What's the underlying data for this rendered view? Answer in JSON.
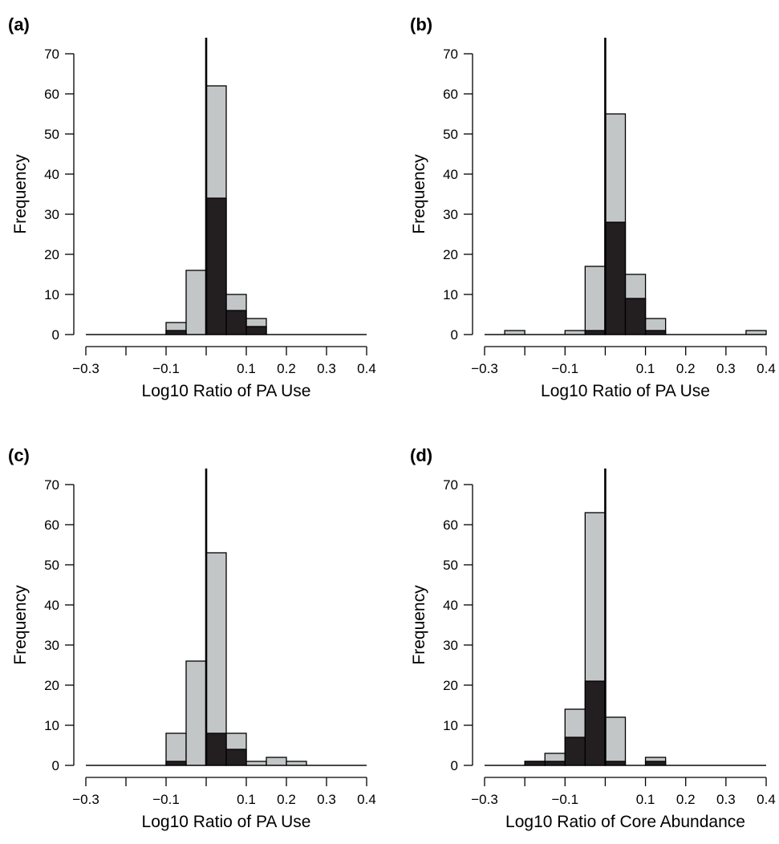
{
  "chart_data": [
    {
      "type": "bar",
      "panel_label": "(a)",
      "xlabel": "Log10 Ratio of PA Use",
      "ylabel": "Frequency",
      "xlim": [
        -0.3,
        0.4
      ],
      "ylim": [
        0,
        70
      ],
      "bin_width": 0.05,
      "bin_start": -0.3,
      "x_ticks": [
        -0.3,
        -0.2,
        -0.1,
        0,
        0.1,
        0.2,
        0.3,
        0.4
      ],
      "x_tick_labels": [
        "−0.3",
        "",
        "−0.1",
        "",
        "0.1",
        "0.2",
        "0.3",
        "0.4"
      ],
      "y_ticks": [
        0,
        10,
        20,
        30,
        40,
        50,
        60,
        70
      ],
      "y_tick_labels": [
        "0",
        "10",
        "20",
        "30",
        "40",
        "50",
        "60",
        "70"
      ],
      "vertical_line_at": 0,
      "series": [
        {
          "values": [
            0,
            0,
            0,
            0,
            3,
            16,
            62,
            10,
            4,
            0,
            0,
            0,
            0,
            0
          ],
          "color": "#c3c6c7"
        },
        {
          "values": [
            0,
            0,
            0,
            0,
            1,
            0,
            34,
            6,
            2,
            0,
            0,
            0,
            0,
            0
          ],
          "color": "#231f20"
        }
      ]
    },
    {
      "type": "bar",
      "panel_label": "(b)",
      "xlabel": "Log10 Ratio of PA Use",
      "ylabel": "Frequency",
      "xlim": [
        -0.3,
        0.4
      ],
      "ylim": [
        0,
        70
      ],
      "bin_width": 0.05,
      "bin_start": -0.3,
      "x_ticks": [
        -0.3,
        -0.2,
        -0.1,
        0,
        0.1,
        0.2,
        0.3,
        0.4
      ],
      "x_tick_labels": [
        "−0.3",
        "",
        "−0.1",
        "",
        "0.1",
        "0.2",
        "0.3",
        "0.4"
      ],
      "y_ticks": [
        0,
        10,
        20,
        30,
        40,
        50,
        60,
        70
      ],
      "y_tick_labels": [
        "0",
        "10",
        "20",
        "30",
        "40",
        "50",
        "60",
        "70"
      ],
      "vertical_line_at": 0,
      "series": [
        {
          "values": [
            0,
            1,
            0,
            0,
            1,
            17,
            55,
            15,
            4,
            0,
            0,
            0,
            0,
            1
          ],
          "color": "#c3c6c7"
        },
        {
          "values": [
            0,
            0,
            0,
            0,
            0,
            1,
            28,
            9,
            1,
            0,
            0,
            0,
            0,
            0
          ],
          "color": "#231f20"
        }
      ]
    },
    {
      "type": "bar",
      "panel_label": "(c)",
      "xlabel": "Log10 Ratio of PA Use",
      "ylabel": "Frequency",
      "xlim": [
        -0.3,
        0.4
      ],
      "ylim": [
        0,
        70
      ],
      "bin_width": 0.05,
      "bin_start": -0.3,
      "x_ticks": [
        -0.3,
        -0.2,
        -0.1,
        0,
        0.1,
        0.2,
        0.3,
        0.4
      ],
      "x_tick_labels": [
        "−0.3",
        "",
        "−0.1",
        "",
        "0.1",
        "0.2",
        "0.3",
        "0.4"
      ],
      "y_ticks": [
        0,
        10,
        20,
        30,
        40,
        50,
        60,
        70
      ],
      "y_tick_labels": [
        "0",
        "10",
        "20",
        "30",
        "40",
        "50",
        "60",
        "70"
      ],
      "vertical_line_at": 0,
      "series": [
        {
          "values": [
            0,
            0,
            0,
            0,
            8,
            26,
            53,
            8,
            1,
            2,
            1,
            0,
            0,
            0
          ],
          "color": "#c3c6c7"
        },
        {
          "values": [
            0,
            0,
            0,
            0,
            1,
            0,
            8,
            4,
            0,
            0,
            0,
            0,
            0,
            0
          ],
          "color": "#231f20"
        }
      ]
    },
    {
      "type": "bar",
      "panel_label": "(d)",
      "xlabel": "Log10 Ratio of Core Abundance",
      "ylabel": "Frequency",
      "xlim": [
        -0.3,
        0.4
      ],
      "ylim": [
        0,
        70
      ],
      "bin_width": 0.05,
      "bin_start": -0.3,
      "x_ticks": [
        -0.3,
        -0.2,
        -0.1,
        0,
        0.1,
        0.2,
        0.3,
        0.4
      ],
      "x_tick_labels": [
        "−0.3",
        "",
        "−0.1",
        "",
        "0.1",
        "0.2",
        "0.3",
        "0.4"
      ],
      "y_ticks": [
        0,
        10,
        20,
        30,
        40,
        50,
        60,
        70
      ],
      "y_tick_labels": [
        "0",
        "10",
        "20",
        "30",
        "40",
        "50",
        "60",
        "70"
      ],
      "vertical_line_at": 0,
      "series": [
        {
          "values": [
            0,
            0,
            1,
            3,
            14,
            63,
            12,
            0,
            2,
            0,
            0,
            0,
            0,
            0
          ],
          "color": "#c3c6c7"
        },
        {
          "values": [
            0,
            0,
            1,
            1,
            7,
            21,
            1,
            0,
            1,
            0,
            0,
            0,
            0,
            0
          ],
          "color": "#231f20"
        }
      ]
    }
  ]
}
